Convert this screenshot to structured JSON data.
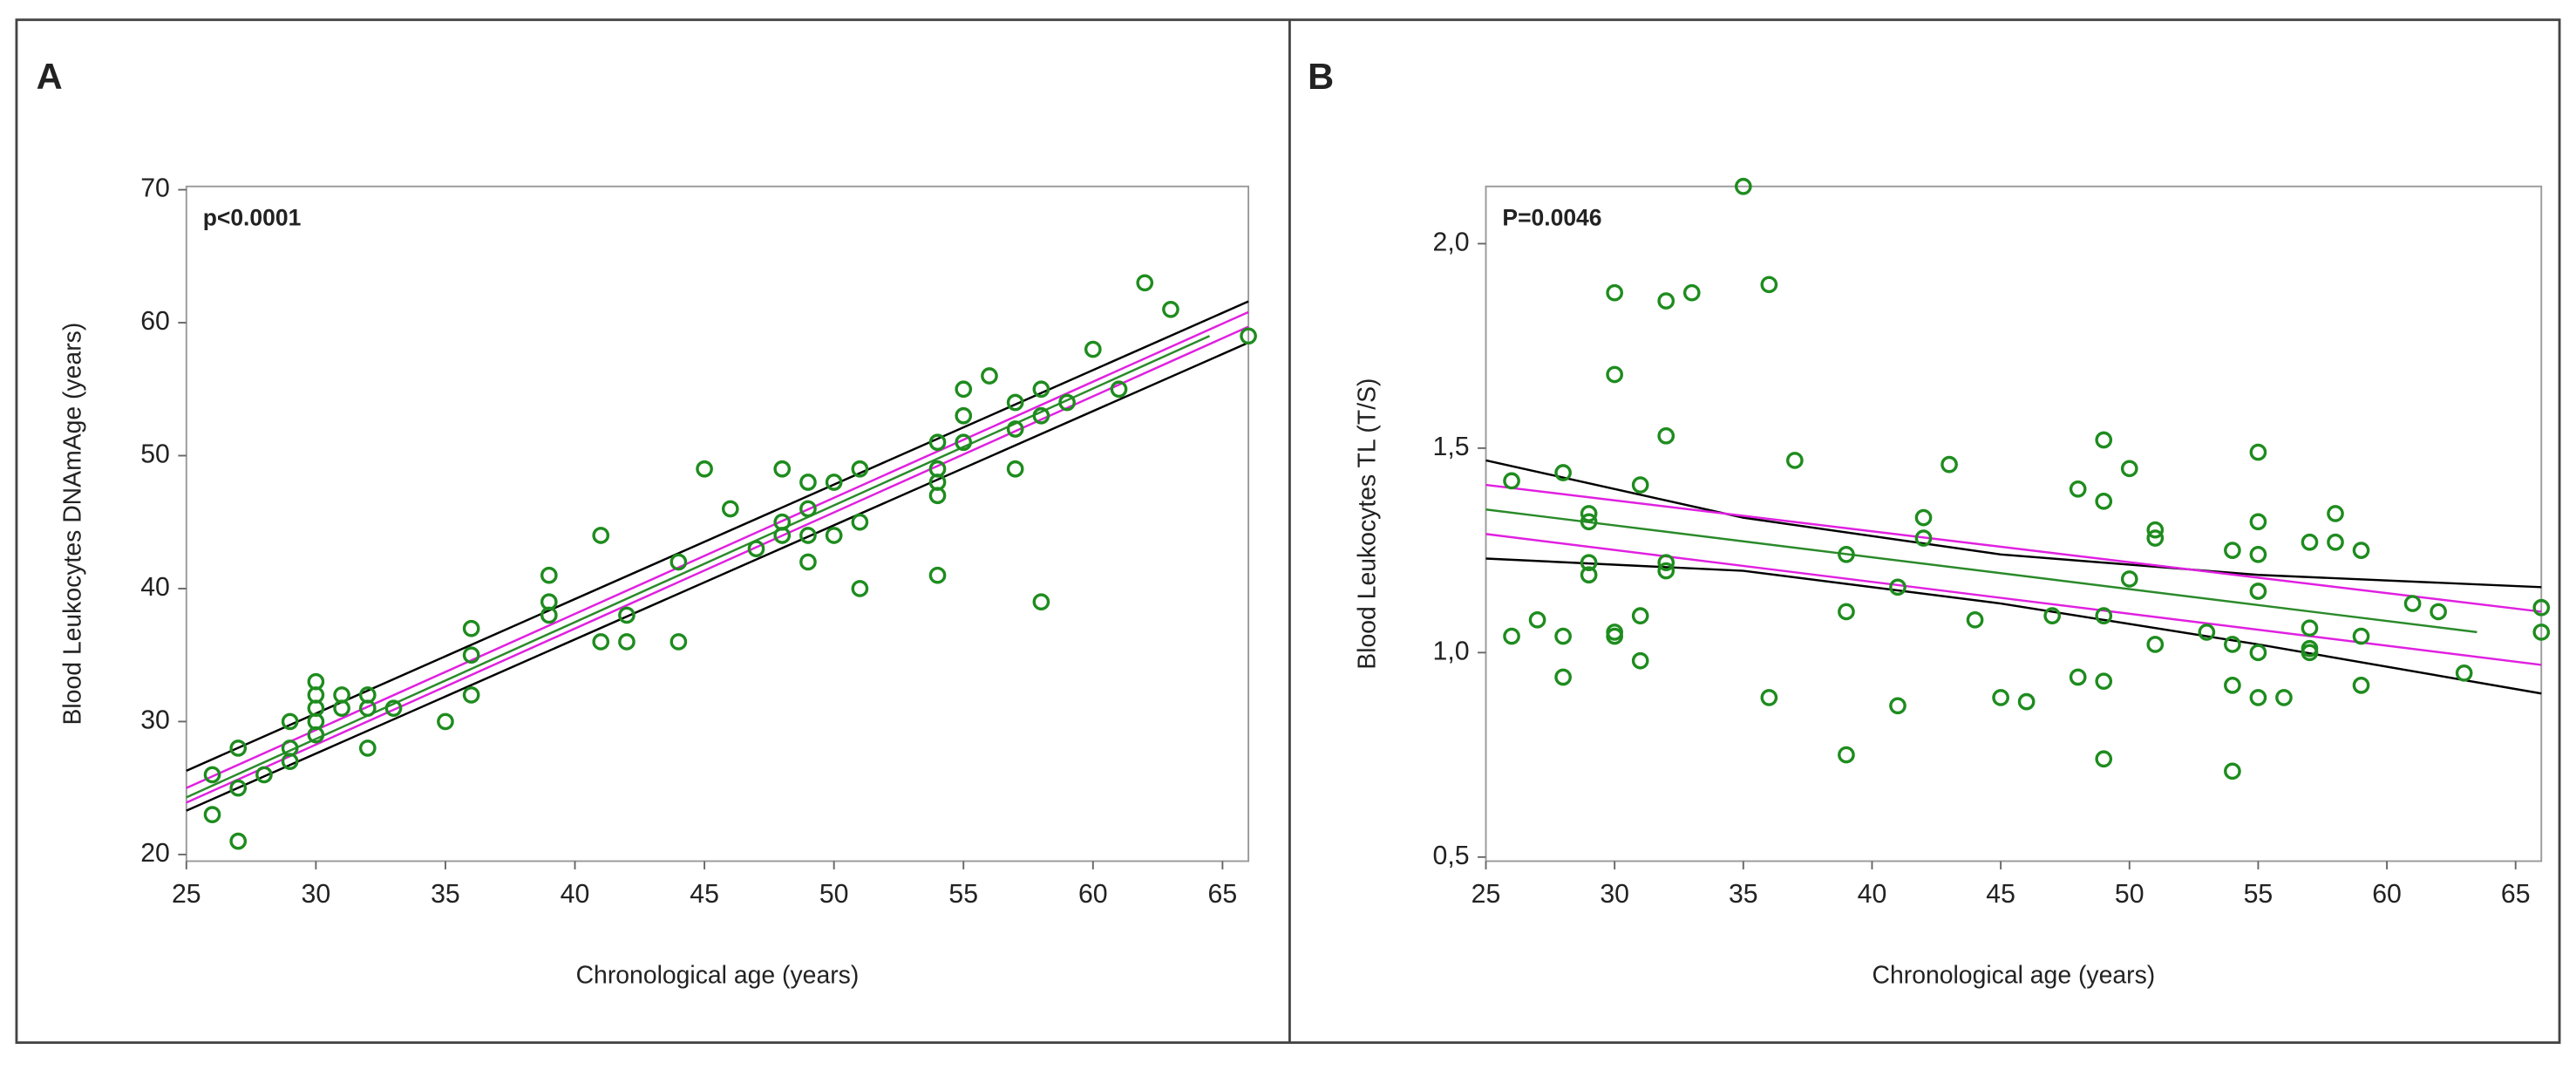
{
  "chart_data": [
    {
      "type": "scatter",
      "panel": "A",
      "annotation": "p<0.0001",
      "xlabel": "Chronological age (years)",
      "ylabel": "Blood Leukocytes DNAmAge (years)",
      "xlim": [
        25,
        66
      ],
      "ylim": [
        19.5,
        70.25
      ],
      "xticks": [
        25,
        30,
        35,
        40,
        45,
        50,
        55,
        60,
        65
      ],
      "yticks": [
        20,
        30,
        40,
        50,
        60,
        70
      ],
      "marker_color": "#1e8c1e",
      "x": [
        26,
        26,
        27,
        27,
        27,
        28,
        29,
        29,
        29,
        30,
        30,
        30,
        30,
        30,
        31,
        31,
        32,
        32,
        32,
        33,
        35,
        36,
        36,
        36,
        39,
        39,
        39,
        41,
        41,
        42,
        42,
        44,
        44,
        45,
        46,
        47,
        48,
        48,
        48,
        49,
        49,
        49,
        49,
        50,
        50,
        51,
        51,
        51,
        54,
        54,
        54,
        54,
        54,
        55,
        55,
        55,
        56,
        57,
        57,
        57,
        58,
        58,
        58,
        59,
        60,
        61,
        62,
        63,
        66
      ],
      "values": [
        26,
        23,
        28,
        25,
        21,
        26,
        30,
        28,
        27,
        33,
        32,
        31,
        30,
        29,
        32,
        31,
        32,
        31,
        28,
        31,
        30,
        37,
        35,
        32,
        41,
        39,
        38,
        44,
        36,
        38,
        36,
        42,
        36,
        49,
        46,
        43,
        49,
        45,
        44,
        48,
        46,
        44,
        42,
        48,
        44,
        49,
        45,
        40,
        51,
        49,
        48,
        47,
        41,
        55,
        53,
        51,
        56,
        54,
        52,
        49,
        55,
        53,
        39,
        54,
        58,
        55,
        63,
        61,
        59
      ],
      "lines": [
        {
          "color": "#000000",
          "x": [
            25,
            66
          ],
          "values": [
            26.3,
            61.6
          ]
        },
        {
          "color": "#e020e0",
          "x": [
            25,
            66
          ],
          "values": [
            25.0,
            60.8
          ]
        },
        {
          "color": "#2a8a2a",
          "x": [
            25,
            64.5
          ],
          "values": [
            24.3,
            59.0
          ]
        },
        {
          "color": "#e020e0",
          "x": [
            25,
            66
          ],
          "values": [
            23.9,
            59.7
          ]
        },
        {
          "color": "#000000",
          "x": [
            25,
            66
          ],
          "values": [
            23.3,
            58.5
          ]
        }
      ]
    },
    {
      "type": "scatter",
      "panel": "B",
      "annotation": "P=0.0046",
      "xlabel": "Chronological age (years)",
      "ylabel": "Blood Leukocytes TL (T/S)",
      "xlim": [
        25,
        66
      ],
      "ylim": [
        0.49,
        2.14
      ],
      "xticks": [
        25,
        30,
        35,
        40,
        45,
        50,
        55,
        60,
        65
      ],
      "yticks": [
        {
          "value": 0.5,
          "label": "0,5"
        },
        {
          "value": 1,
          "label": "1,0"
        },
        {
          "value": 1.5,
          "label": "1,5"
        },
        {
          "value": 2,
          "label": "2,0"
        }
      ],
      "marker_color": "#1e8c1e",
      "x": [
        26,
        26,
        27,
        28,
        28,
        28,
        29,
        29,
        29,
        29,
        30,
        30,
        30,
        30,
        31,
        31,
        31,
        32,
        32,
        32,
        32,
        33,
        35,
        36,
        36,
        37,
        39,
        39,
        39,
        41,
        41,
        42,
        42,
        43,
        44,
        45,
        46,
        47,
        48,
        48,
        49,
        49,
        49,
        49,
        49,
        50,
        50,
        51,
        51,
        51,
        53,
        54,
        54,
        54,
        54,
        55,
        55,
        55,
        55,
        55,
        55,
        56,
        57,
        57,
        57,
        57,
        58,
        58,
        59,
        59,
        59,
        61,
        62,
        63,
        66,
        66
      ],
      "values": [
        1.42,
        1.04,
        1.08,
        1.44,
        1.04,
        0.94,
        1.34,
        1.32,
        1.22,
        1.19,
        1.88,
        1.68,
        1.05,
        1.04,
        1.41,
        1.09,
        0.98,
        1.86,
        1.53,
        1.22,
        1.2,
        1.88,
        2.14,
        1.9,
        0.89,
        1.47,
        1.24,
        1.1,
        0.75,
        1.16,
        0.87,
        1.33,
        1.28,
        1.46,
        1.08,
        0.89,
        0.88,
        1.09,
        1.4,
        0.94,
        1.52,
        1.37,
        1.09,
        0.93,
        0.74,
        1.45,
        1.18,
        1.3,
        1.28,
        1.02,
        1.05,
        1.25,
        1.02,
        0.92,
        0.71,
        1.49,
        1.32,
        1.24,
        1.15,
        1.0,
        0.89,
        0.89,
        1.27,
        1.06,
        1.0,
        1.01,
        1.34,
        1.27,
        1.25,
        1.04,
        0.92,
        1.12,
        1.1,
        0.95,
        1.11,
        1.05
      ],
      "lines": [
        {
          "color": "#000000",
          "x": [
            25,
            35,
            45,
            55,
            66
          ],
          "values": [
            1.47,
            1.33,
            1.24,
            1.19,
            1.16
          ]
        },
        {
          "color": "#e020e0",
          "x": [
            25,
            66
          ],
          "values": [
            1.41,
            1.1
          ]
        },
        {
          "color": "#2a8a2a",
          "x": [
            25,
            63.5
          ],
          "values": [
            1.35,
            1.05
          ]
        },
        {
          "color": "#e020e0",
          "x": [
            25,
            66
          ],
          "values": [
            1.29,
            0.97
          ]
        },
        {
          "color": "#000000",
          "x": [
            25,
            35,
            45,
            55,
            66
          ],
          "values": [
            1.23,
            1.2,
            1.12,
            1.02,
            0.9
          ]
        }
      ]
    }
  ]
}
